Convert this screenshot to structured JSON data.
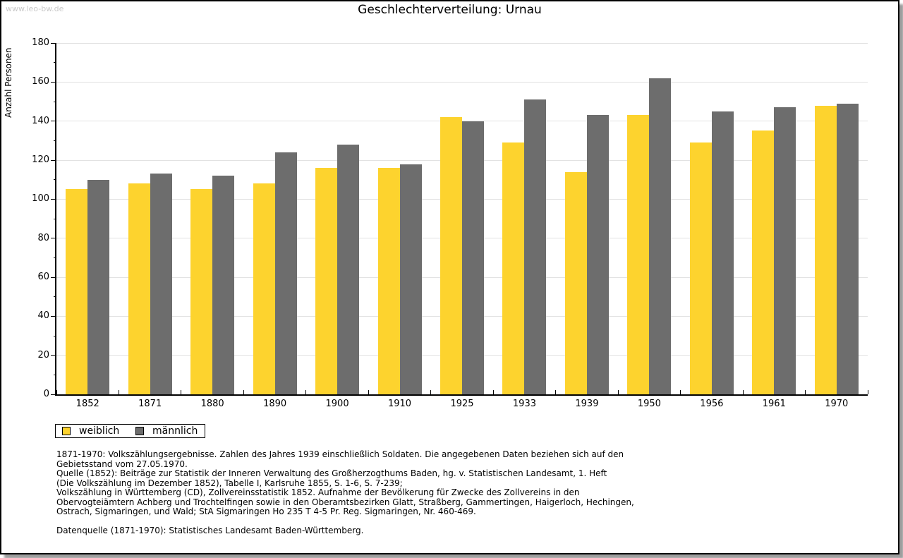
{
  "header": {
    "watermark": "www.leo-bw.de"
  },
  "chart_data": {
    "type": "bar",
    "title": "Geschlechterverteilung: Urnau",
    "xlabel": "",
    "ylabel": "Anzahl Personen",
    "ylim": [
      0,
      180
    ],
    "ytick_step": 20,
    "yminor_tick_step": 10,
    "grid": true,
    "legend_position": "bottom-left",
    "categories": [
      "1852",
      "1871",
      "1880",
      "1890",
      "1900",
      "1910",
      "1925",
      "1933",
      "1939",
      "1950",
      "1956",
      "1961",
      "1970"
    ],
    "series": [
      {
        "name": "weiblich",
        "color": "#fdd32e",
        "values": [
          105,
          108,
          105,
          108,
          116,
          116,
          142,
          129,
          114,
          143,
          129,
          135,
          148
        ]
      },
      {
        "name": "männlich",
        "color": "#6d6d6d",
        "values": [
          110,
          113,
          112,
          124,
          128,
          118,
          140,
          151,
          143,
          162,
          145,
          147,
          149
        ]
      }
    ]
  },
  "legend": {
    "items": [
      {
        "label": "weiblich",
        "color": "#fdd32e"
      },
      {
        "label": "männlich",
        "color": "#6d6d6d"
      }
    ]
  },
  "footer": {
    "lines": [
      "1871-1970: Volkszählungsergebnisse. Zahlen des Jahres 1939 einschließlich Soldaten. Die angegebenen Daten beziehen sich auf den",
      "Gebietsstand vom 27.05.1970.",
      "Quelle (1852): Beiträge zur Statistik der Inneren Verwaltung des Großherzogthums Baden, hg. v. Statistischen Landesamt, 1. Heft",
      "(Die Volkszählung im Dezember 1852), Tabelle I, Karlsruhe 1855, S. 1-6, S. 7-239;",
      "Volkszählung in Württemberg (CD), Zollvereinsstatistik 1852. Aufnahme der Bevölkerung für Zwecke des Zollvereins in den",
      "Obervogteiämtern Achberg und Trochtelfingen sowie in den Oberamtsbezirken Glatt, Straßberg, Gammertingen, Haigerloch, Hechingen,",
      "Ostrach, Sigmaringen, und Wald; StA Sigmaringen Ho 235 T 4-5 Pr. Reg. Sigmaringen, Nr. 460-469."
    ],
    "datasource": "Datenquelle (1871-1970): Statistisches Landesamt Baden-Württemberg."
  },
  "colors": {
    "bar_weiblich": "#fdd32e",
    "bar_maennlich": "#6d6d6d",
    "gridline": "#e2e2e2",
    "axis": "#000000",
    "watermark": "#c9c9c9",
    "frame_shadow": "#9e9e9e"
  }
}
